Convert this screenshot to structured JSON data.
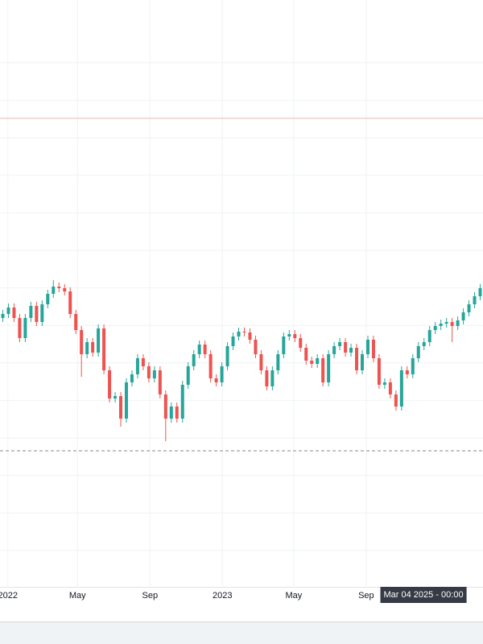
{
  "chart_data": {
    "type": "candlestick",
    "up_color": "#26a69a",
    "down_color": "#ef5350",
    "grid": true,
    "xlim": [
      -0.5,
      85.5
    ],
    "ylim": [
      0,
      700
    ],
    "xticks": [
      {
        "value": 0.9,
        "label": "2022"
      },
      {
        "value": 13.3,
        "label": "May"
      },
      {
        "value": 26.2,
        "label": "Sep"
      },
      {
        "value": 39.1,
        "label": "2023"
      },
      {
        "value": 51.8,
        "label": "May"
      },
      {
        "value": 64.7,
        "label": "Sep"
      }
    ],
    "crosshair": {
      "x": 74.9,
      "label": "Mar 04 2025 - 00:00"
    },
    "hlines": [
      {
        "value": 583,
        "color": "#e6b8b8",
        "dash": false
      },
      {
        "value": 170,
        "color": "#8a8a8a",
        "dash": true
      }
    ],
    "x": [
      0,
      1,
      2,
      3,
      4,
      5,
      6,
      7,
      8,
      9,
      10,
      11,
      12,
      13,
      14,
      15,
      16,
      17,
      18,
      19,
      20,
      21,
      22,
      23,
      24,
      25,
      26,
      27,
      28,
      29,
      30,
      31,
      32,
      33,
      34,
      35,
      36,
      37,
      38,
      39,
      40,
      41,
      42,
      43,
      44,
      45,
      46,
      47,
      48,
      49,
      50,
      51,
      52,
      53,
      54,
      55,
      56,
      57,
      58,
      59,
      60,
      61,
      62,
      63,
      64,
      65,
      66,
      67,
      68,
      69,
      70,
      71,
      72,
      73,
      74,
      75,
      76,
      77,
      78,
      79,
      80,
      81,
      82,
      83,
      84,
      85
    ],
    "open": [
      335,
      340,
      348,
      335,
      310,
      335,
      350,
      330,
      352,
      365,
      374,
      372,
      368,
      340,
      320,
      290,
      305,
      292,
      322,
      270,
      235,
      238,
      210,
      255,
      265,
      285,
      275,
      260,
      270,
      240,
      210,
      225,
      210,
      252,
      275,
      290,
      302,
      290,
      260,
      255,
      275,
      300,
      312,
      318,
      317,
      308,
      290,
      270,
      250,
      270,
      290,
      312,
      315,
      310,
      298,
      282,
      278,
      285,
      255,
      290,
      300,
      305,
      292,
      298,
      270,
      290,
      308,
      285,
      252,
      255,
      240,
      225,
      270,
      265,
      285,
      300,
      305,
      320,
      325,
      328,
      330,
      325,
      332,
      342,
      352,
      362
    ],
    "high": [
      345,
      353,
      353,
      340,
      340,
      355,
      355,
      357,
      370,
      382,
      379,
      377,
      373,
      345,
      325,
      310,
      310,
      327,
      327,
      275,
      243,
      243,
      260,
      270,
      290,
      290,
      280,
      275,
      275,
      245,
      230,
      230,
      257,
      280,
      295,
      307,
      307,
      295,
      265,
      280,
      305,
      317,
      323,
      323,
      322,
      313,
      295,
      275,
      275,
      295,
      317,
      320,
      320,
      315,
      303,
      287,
      290,
      290,
      295,
      305,
      310,
      310,
      303,
      303,
      295,
      313,
      313,
      290,
      260,
      260,
      245,
      275,
      275,
      290,
      305,
      310,
      325,
      330,
      333,
      335,
      335,
      337,
      347,
      357,
      367,
      377
    ],
    "low": [
      330,
      335,
      330,
      305,
      305,
      330,
      325,
      325,
      347,
      360,
      367,
      363,
      335,
      315,
      262,
      285,
      287,
      287,
      265,
      230,
      230,
      200,
      205,
      250,
      260,
      270,
      255,
      255,
      235,
      182,
      205,
      205,
      205,
      247,
      270,
      285,
      285,
      255,
      250,
      250,
      270,
      295,
      307,
      312,
      303,
      285,
      265,
      245,
      245,
      265,
      285,
      307,
      305,
      293,
      277,
      273,
      273,
      250,
      250,
      285,
      295,
      287,
      287,
      265,
      265,
      285,
      280,
      247,
      247,
      235,
      220,
      220,
      260,
      260,
      280,
      295,
      300,
      315,
      320,
      323,
      305,
      320,
      327,
      337,
      347,
      357
    ],
    "close": [
      340,
      348,
      335,
      310,
      335,
      350,
      330,
      352,
      365,
      374,
      372,
      368,
      340,
      320,
      290,
      305,
      292,
      322,
      270,
      235,
      238,
      210,
      255,
      265,
      285,
      275,
      260,
      270,
      240,
      210,
      225,
      210,
      252,
      275,
      290,
      302,
      290,
      260,
      255,
      275,
      300,
      312,
      318,
      317,
      308,
      290,
      270,
      250,
      270,
      290,
      312,
      315,
      310,
      298,
      282,
      278,
      285,
      255,
      290,
      300,
      305,
      292,
      298,
      270,
      290,
      308,
      285,
      252,
      255,
      240,
      225,
      270,
      265,
      285,
      300,
      305,
      320,
      325,
      328,
      330,
      325,
      332,
      342,
      352,
      362,
      372
    ]
  }
}
